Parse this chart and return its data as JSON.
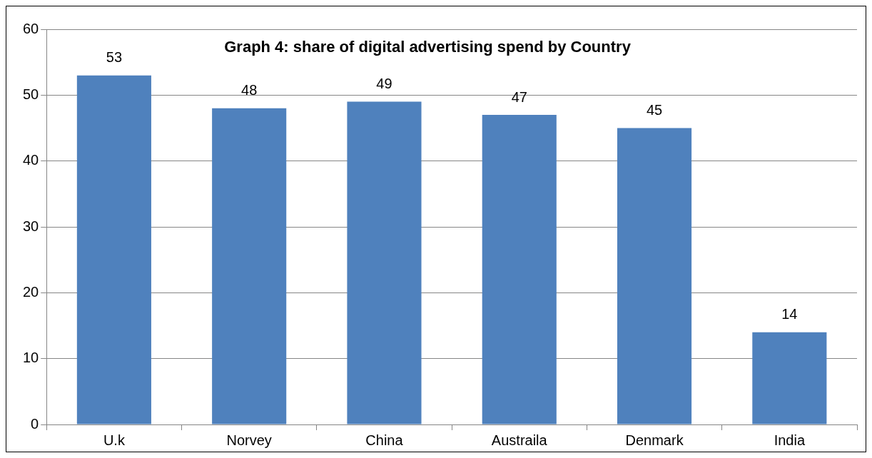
{
  "chart_data": {
    "type": "bar",
    "title": "Graph 4: share of digital advertising spend by Country",
    "categories": [
      "U.k",
      "Norvey",
      "China",
      "Austraila",
      "Denmark",
      "India"
    ],
    "values": [
      53,
      48,
      49,
      47,
      45,
      14
    ],
    "color": "#4f81bd",
    "ylim": [
      0,
      60
    ],
    "yticks": [
      0,
      10,
      20,
      30,
      40,
      50,
      60
    ],
    "grid": "y",
    "data_labels": true
  }
}
